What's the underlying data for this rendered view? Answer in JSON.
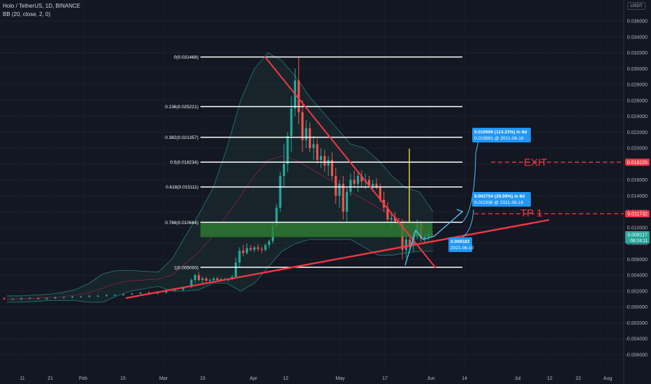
{
  "header": {
    "title": "Holo / TetherUS, 1D, BINANCE",
    "indicator": "BB (20, close, 2, 0)"
  },
  "currency": "USDT",
  "colors": {
    "background": "#131722",
    "up": "#26a69a",
    "down": "#ef5350",
    "trendline": "#f23645",
    "fib_line": "#ffffff",
    "zone": "#2e7d32",
    "projection": "#4fc3f7",
    "vertical_marker": "#ffeb3b",
    "bb_fill": "#1f3f3a"
  },
  "chart_data": {
    "type": "candlestick",
    "title": "Holo / TetherUS, 1D, BINANCE",
    "ylim": [
      -0.006,
      0.0375
    ],
    "y_ticks": [
      "0.036000",
      "0.034000",
      "0.032000",
      "0.030000",
      "0.028000",
      "0.026000",
      "0.024000",
      "0.022000",
      "0.020000",
      "0.018000",
      "0.016000",
      "0.014000",
      "0.012000",
      "0.010000",
      "0.008000",
      "0.006000",
      "0.004000",
      "0.002000",
      "-0.000000",
      "-0.002000",
      "-0.004000",
      "-0.006000"
    ],
    "x_ticks": [
      "11",
      "21",
      "Feb",
      "15",
      "Mar",
      "15",
      "Apr",
      "12",
      "May",
      "17",
      "Jun",
      "14",
      "Jul",
      "12",
      "22",
      "Aug"
    ],
    "candles": [
      [
        0.0011,
        0.0012,
        0.0009,
        0.001
      ],
      [
        0.001,
        0.0011,
        0.0009,
        0.001
      ],
      [
        0.001,
        0.0012,
        0.0009,
        0.0011
      ],
      [
        0.0011,
        0.0012,
        0.001,
        0.0011
      ],
      [
        0.0011,
        0.0012,
        0.001,
        0.001
      ],
      [
        0.001,
        0.0012,
        0.0009,
        0.0011
      ],
      [
        0.0011,
        0.0013,
        0.001,
        0.0012
      ],
      [
        0.0012,
        0.0013,
        0.0011,
        0.0012
      ],
      [
        0.0012,
        0.0014,
        0.0011,
        0.0013
      ],
      [
        0.0013,
        0.0014,
        0.0012,
        0.0013
      ],
      [
        0.0013,
        0.0015,
        0.0012,
        0.0014
      ],
      [
        0.0014,
        0.0015,
        0.0013,
        0.0014
      ],
      [
        0.0014,
        0.0016,
        0.0013,
        0.0015
      ],
      [
        0.0015,
        0.0016,
        0.0014,
        0.0015
      ],
      [
        0.0015,
        0.0017,
        0.0014,
        0.0016
      ],
      [
        0.0016,
        0.0018,
        0.0015,
        0.0017
      ],
      [
        0.0017,
        0.0019,
        0.0016,
        0.0018
      ],
      [
        0.0018,
        0.002,
        0.0016,
        0.0017
      ],
      [
        0.0017,
        0.0019,
        0.0016,
        0.0018
      ],
      [
        0.0018,
        0.0022,
        0.0017,
        0.0021
      ],
      [
        0.0021,
        0.0024,
        0.0019,
        0.0022
      ],
      [
        0.0022,
        0.0026,
        0.002,
        0.0025
      ],
      [
        0.0025,
        0.0036,
        0.0024,
        0.0034
      ],
      [
        0.0034,
        0.0042,
        0.003,
        0.004
      ],
      [
        0.004,
        0.0044,
        0.0032,
        0.0034
      ],
      [
        0.0034,
        0.0038,
        0.003,
        0.0036
      ],
      [
        0.0036,
        0.0038,
        0.0032,
        0.0033
      ],
      [
        0.0033,
        0.0036,
        0.003,
        0.0034
      ],
      [
        0.0034,
        0.0038,
        0.0032,
        0.0036
      ],
      [
        0.0036,
        0.0038,
        0.0033,
        0.0034
      ],
      [
        0.0034,
        0.0037,
        0.0032,
        0.0035
      ],
      [
        0.0035,
        0.0037,
        0.0033,
        0.0034
      ],
      [
        0.0034,
        0.0036,
        0.0032,
        0.0035
      ],
      [
        0.0035,
        0.004,
        0.0034,
        0.0038
      ],
      [
        0.0038,
        0.0062,
        0.0036,
        0.0056
      ],
      [
        0.0056,
        0.0075,
        0.005,
        0.0071
      ],
      [
        0.0071,
        0.0078,
        0.0064,
        0.0068
      ],
      [
        0.0068,
        0.008,
        0.0066,
        0.0074
      ],
      [
        0.0074,
        0.0078,
        0.007,
        0.0072
      ],
      [
        0.0072,
        0.0077,
        0.0069,
        0.0075
      ],
      [
        0.0075,
        0.0079,
        0.007,
        0.0073
      ],
      [
        0.0073,
        0.0076,
        0.0068,
        0.0072
      ],
      [
        0.0072,
        0.008,
        0.007,
        0.0078
      ],
      [
        0.0078,
        0.0085,
        0.0074,
        0.0083
      ],
      [
        0.0083,
        0.0106,
        0.008,
        0.0102
      ],
      [
        0.0102,
        0.013,
        0.0098,
        0.0125
      ],
      [
        0.0125,
        0.017,
        0.012,
        0.0165
      ],
      [
        0.0165,
        0.0205,
        0.015,
        0.018
      ],
      [
        0.018,
        0.022,
        0.017,
        0.0215
      ],
      [
        0.0215,
        0.0265,
        0.0195,
        0.025
      ],
      [
        0.025,
        0.03,
        0.024,
        0.0285
      ],
      [
        0.0285,
        0.0315,
        0.023,
        0.0245
      ],
      [
        0.0245,
        0.026,
        0.0195,
        0.021
      ],
      [
        0.021,
        0.0235,
        0.02,
        0.0225
      ],
      [
        0.0225,
        0.0232,
        0.0195,
        0.02
      ],
      [
        0.02,
        0.0215,
        0.0185,
        0.0205
      ],
      [
        0.0205,
        0.0212,
        0.018,
        0.0185
      ],
      [
        0.0185,
        0.02,
        0.0175,
        0.019
      ],
      [
        0.019,
        0.0198,
        0.017,
        0.0178
      ],
      [
        0.0178,
        0.019,
        0.0165,
        0.0185
      ],
      [
        0.0185,
        0.0195,
        0.016,
        0.0165
      ],
      [
        0.0165,
        0.0175,
        0.013,
        0.014
      ],
      [
        0.014,
        0.016,
        0.0125,
        0.0155
      ],
      [
        0.0155,
        0.0165,
        0.011,
        0.012
      ],
      [
        0.012,
        0.015,
        0.0108,
        0.0145
      ],
      [
        0.0145,
        0.0168,
        0.014,
        0.016
      ],
      [
        0.016,
        0.0172,
        0.015,
        0.0155
      ],
      [
        0.0155,
        0.017,
        0.0145,
        0.0165
      ],
      [
        0.0165,
        0.0172,
        0.015,
        0.0158
      ],
      [
        0.0158,
        0.0168,
        0.0148,
        0.016
      ],
      [
        0.016,
        0.0165,
        0.015,
        0.0152
      ],
      [
        0.0152,
        0.016,
        0.0145,
        0.0155
      ],
      [
        0.0155,
        0.0162,
        0.0148,
        0.015
      ],
      [
        0.015,
        0.0155,
        0.0132,
        0.0135
      ],
      [
        0.0135,
        0.0145,
        0.012,
        0.0125
      ],
      [
        0.0125,
        0.0132,
        0.0105,
        0.011
      ],
      [
        0.011,
        0.0118,
        0.01,
        0.0112
      ],
      [
        0.0112,
        0.012,
        0.0104,
        0.0108
      ],
      [
        0.0108,
        0.0112,
        0.01,
        0.0105
      ],
      [
        0.0105,
        0.011,
        0.006,
        0.0072
      ],
      [
        0.0072,
        0.0092,
        0.0062,
        0.0085
      ],
      [
        0.0085,
        0.009,
        0.0072,
        0.0078
      ],
      [
        0.0078,
        0.0095,
        0.007,
        0.009
      ],
      [
        0.009,
        0.011,
        0.0085,
        0.0105
      ],
      [
        0.0105,
        0.0108,
        0.0082,
        0.0086
      ],
      [
        0.0086,
        0.0092,
        0.008,
        0.0088
      ],
      [
        0.0088,
        0.0095,
        0.0084,
        0.0092
      ],
      [
        0.0092,
        0.0096,
        0.0088,
        0.0091
      ]
    ],
    "bollinger": {
      "upper": [
        0.0014,
        0.0014,
        0.0015,
        0.0016,
        0.0018,
        0.0022,
        0.003,
        0.0042,
        0.0046,
        0.0046,
        0.0045,
        0.0044,
        0.006,
        0.009,
        0.0118,
        0.015,
        0.02,
        0.026,
        0.03,
        0.032,
        0.031,
        0.029,
        0.0265,
        0.0245,
        0.0225,
        0.0205,
        0.02,
        0.0185,
        0.0165,
        0.015,
        0.0145,
        0.012
      ],
      "basis": [
        0.001,
        0.001,
        0.0011,
        0.0012,
        0.0013,
        0.0015,
        0.0018,
        0.0024,
        0.003,
        0.0033,
        0.0034,
        0.0035,
        0.004,
        0.0055,
        0.007,
        0.009,
        0.0115,
        0.014,
        0.0165,
        0.0185,
        0.019,
        0.0185,
        0.0175,
        0.0165,
        0.0155,
        0.0145,
        0.0135,
        0.0125,
        0.0115,
        0.0108,
        0.01,
        0.0095
      ],
      "lower": [
        0.0006,
        0.0006,
        0.0007,
        0.0008,
        0.0008,
        0.0008,
        0.0006,
        0.0006,
        0.0014,
        0.002,
        0.0023,
        0.0026,
        0.002,
        0.002,
        0.0022,
        0.003,
        0.003,
        0.002,
        0.003,
        0.005,
        0.007,
        0.008,
        0.0085,
        0.0085,
        0.0085,
        0.0085,
        0.0075,
        0.0065,
        0.0065,
        0.0068,
        0.007,
        0.007
      ]
    },
    "fib_levels": [
      {
        "label": "0(0.031468)",
        "value": 0.031468
      },
      {
        "label": "0.236(0.025221)",
        "value": 0.025221
      },
      {
        "label": "0.382(0.021357)",
        "value": 0.021357
      },
      {
        "label": "0.5(0.018234)",
        "value": 0.018234
      },
      {
        "label": "0.618(0.015111)",
        "value": 0.015111
      },
      {
        "label": "0.786(0.010664)",
        "value": 0.010664
      },
      {
        "label": "1(0.005000)",
        "value": 0.005
      }
    ],
    "zone": {
      "from": 0.0088,
      "to": 0.0106
    },
    "annotations": {
      "exit_label": "EXIT",
      "tp1_label": "TP 1",
      "exit_price": "0.018225",
      "tp1_price": "0.011732",
      "current_price": "0.009117",
      "countdown": "08:24:11",
      "proj1_line1": "0.010606 (114.23%) in 8d",
      "proj1_line2": "0.019891 @ 2021-06-18",
      "proj2_line1": "0.002754 (29.99%) in 8d",
      "proj2_line2": "0.011936 @ 2021-06-18",
      "base_line1": "0.009183",
      "base_line2": "2021-06-10"
    }
  }
}
